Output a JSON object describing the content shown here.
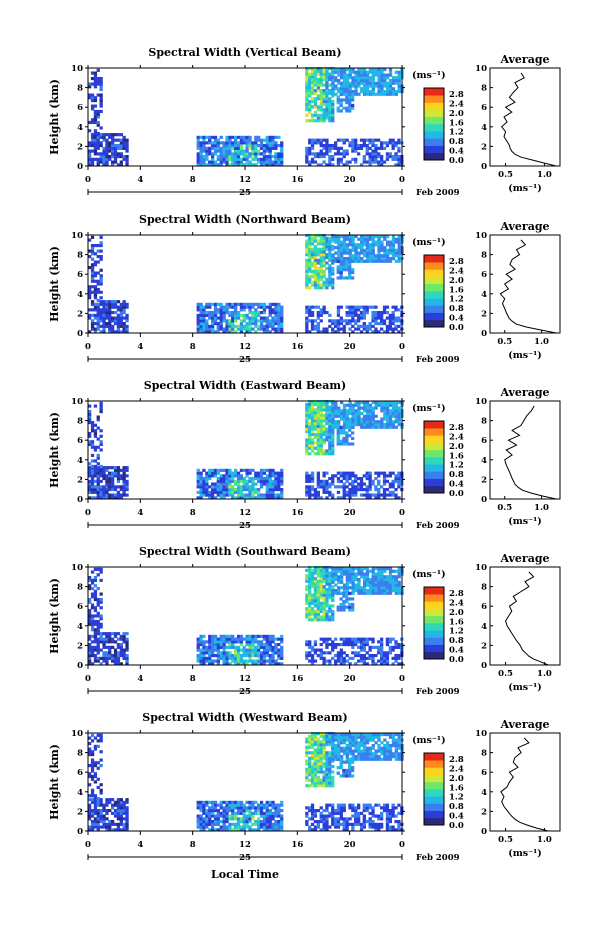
{
  "figure": {
    "xlabel": "Local Time",
    "date_day": "25",
    "date_suffix": "Feb 2009",
    "ylabel": "Height (km)",
    "colorbar_unit": "(ms⁻¹)",
    "colorbar_ticks": [
      "2.8",
      "2.4",
      "2.0",
      "1.6",
      "1.2",
      "0.8",
      "0.4",
      "0.0"
    ],
    "colors": [
      "#2a2a7a",
      "#2c3ed8",
      "#3a7ef0",
      "#22b8e6",
      "#2ed8b8",
      "#6ee86a",
      "#cfe838",
      "#ffd21e",
      "#ff8a1e",
      "#e62a1a"
    ],
    "avg_title": "Average",
    "avg_xlabel": "(ms⁻¹)"
  },
  "chart_data": [
    {
      "type": "heatmap",
      "title": "Spectral Width (Vertical Beam)",
      "x_ticks": [
        "0",
        "4",
        "8",
        "12",
        "16",
        "20",
        "0"
      ],
      "y_ticks": [
        "10",
        "8",
        "6",
        "4",
        "2",
        "0"
      ],
      "xlim": [
        0,
        24
      ],
      "ylim": [
        0,
        10
      ],
      "zlim": [
        0,
        3.0
      ],
      "avg": {
        "x_ticks": [
          "0.5",
          "1.0"
        ],
        "xlim": [
          0.3,
          1.2
        ],
        "y_ticks": [
          "10",
          "8",
          "6",
          "4",
          "2",
          "0"
        ],
        "height": [
          0,
          0.3,
          0.6,
          0.9,
          1.2,
          1.5,
          1.8,
          2.1,
          2.5,
          3.0,
          3.5,
          4.0,
          4.5,
          5.0,
          5.5,
          6.0,
          6.5,
          7.0,
          7.5,
          8.0,
          8.5,
          9.0,
          9.5
        ],
        "width": [
          1.15,
          1.0,
          0.85,
          0.7,
          0.62,
          0.58,
          0.56,
          0.55,
          0.52,
          0.48,
          0.5,
          0.45,
          0.52,
          0.48,
          0.58,
          0.5,
          0.62,
          0.55,
          0.6,
          0.66,
          0.62,
          0.74,
          0.7
        ]
      }
    },
    {
      "type": "heatmap",
      "title": "Spectral Width (Northward Beam)",
      "x_ticks": [
        "0",
        "4",
        "8",
        "12",
        "16",
        "20",
        "0"
      ],
      "y_ticks": [
        "10",
        "8",
        "6",
        "4",
        "2",
        "0"
      ],
      "xlim": [
        0,
        24
      ],
      "ylim": [
        0,
        10
      ],
      "zlim": [
        0,
        3.0
      ],
      "avg": {
        "x_ticks": [
          "0.5",
          "1.0"
        ],
        "xlim": [
          0.3,
          1.25
        ],
        "y_ticks": [
          "10",
          "8",
          "6",
          "4",
          "2",
          "0"
        ],
        "height": [
          0,
          0.3,
          0.6,
          0.9,
          1.2,
          1.5,
          1.8,
          2.1,
          2.5,
          3.0,
          3.5,
          4.0,
          4.5,
          5.0,
          5.5,
          6.0,
          6.5,
          7.0,
          7.5,
          8.0,
          8.5,
          9.0,
          9.5
        ],
        "width": [
          1.2,
          1.0,
          0.8,
          0.66,
          0.6,
          0.56,
          0.54,
          0.52,
          0.5,
          0.47,
          0.5,
          0.44,
          0.55,
          0.5,
          0.6,
          0.52,
          0.64,
          0.57,
          0.6,
          0.7,
          0.66,
          0.78,
          0.72
        ]
      }
    },
    {
      "type": "heatmap",
      "title": "Spectral Width (Eastward Beam)",
      "x_ticks": [
        "0",
        "4",
        "8",
        "12",
        "16",
        "20",
        "0"
      ],
      "y_ticks": [
        "10",
        "8",
        "6",
        "4",
        "2",
        "0"
      ],
      "xlim": [
        0,
        24
      ],
      "ylim": [
        0,
        10
      ],
      "zlim": [
        0,
        3.0
      ],
      "avg": {
        "x_ticks": [
          "0.5",
          "1.0"
        ],
        "xlim": [
          0.3,
          1.25
        ],
        "y_ticks": [
          "10",
          "8",
          "6",
          "4",
          "2",
          "0"
        ],
        "height": [
          0,
          0.3,
          0.6,
          0.9,
          1.2,
          1.5,
          1.8,
          2.1,
          2.5,
          3.0,
          3.5,
          4.0,
          4.5,
          5.0,
          5.5,
          6.0,
          6.5,
          7.0,
          7.5,
          8.0,
          8.5,
          9.0,
          9.5
        ],
        "width": [
          1.2,
          1.02,
          0.86,
          0.74,
          0.68,
          0.64,
          0.62,
          0.6,
          0.58,
          0.55,
          0.52,
          0.5,
          0.6,
          0.52,
          0.66,
          0.55,
          0.7,
          0.6,
          0.72,
          0.76,
          0.8,
          0.86,
          0.9
        ]
      }
    },
    {
      "type": "heatmap",
      "title": "Spectral Width (Southward Beam)",
      "x_ticks": [
        "0",
        "4",
        "8",
        "12",
        "16",
        "20",
        "0"
      ],
      "y_ticks": [
        "10",
        "8",
        "6",
        "4",
        "2",
        "0"
      ],
      "xlim": [
        0,
        24
      ],
      "ylim": [
        0,
        10
      ],
      "zlim": [
        0,
        3.0
      ],
      "avg": {
        "x_ticks": [
          "0.5",
          "1.0"
        ],
        "xlim": [
          0.3,
          1.2
        ],
        "y_ticks": [
          "10",
          "8",
          "6",
          "4",
          "2",
          "0"
        ],
        "height": [
          0,
          0.3,
          0.6,
          0.9,
          1.2,
          1.5,
          1.8,
          2.1,
          2.5,
          3.0,
          3.5,
          4.0,
          4.5,
          5.0,
          5.5,
          6.0,
          6.5,
          7.0,
          7.5,
          8.0,
          8.5,
          9.0,
          9.5
        ],
        "width": [
          1.05,
          0.96,
          0.86,
          0.8,
          0.76,
          0.72,
          0.7,
          0.68,
          0.64,
          0.6,
          0.56,
          0.52,
          0.5,
          0.54,
          0.58,
          0.55,
          0.64,
          0.6,
          0.7,
          0.8,
          0.75,
          0.86,
          0.8
        ]
      }
    },
    {
      "type": "heatmap",
      "title": "Spectral Width (Westward Beam)",
      "x_ticks": [
        "0",
        "4",
        "8",
        "12",
        "16",
        "20",
        "0"
      ],
      "y_ticks": [
        "10",
        "8",
        "6",
        "4",
        "2",
        "0"
      ],
      "xlim": [
        0,
        24
      ],
      "ylim": [
        0,
        10
      ],
      "zlim": [
        0,
        3.0
      ],
      "avg": {
        "x_ticks": [
          "0.5",
          "1.0"
        ],
        "xlim": [
          0.3,
          1.2
        ],
        "y_ticks": [
          "10",
          "8",
          "6",
          "4",
          "2",
          "0"
        ],
        "height": [
          0,
          0.3,
          0.6,
          0.9,
          1.2,
          1.5,
          1.8,
          2.1,
          2.5,
          3.0,
          3.5,
          4.0,
          4.5,
          5.0,
          5.5,
          6.0,
          6.5,
          7.0,
          7.5,
          8.0,
          8.5,
          9.0,
          9.5
        ],
        "width": [
          1.05,
          0.9,
          0.78,
          0.68,
          0.62,
          0.58,
          0.55,
          0.52,
          0.48,
          0.45,
          0.48,
          0.44,
          0.52,
          0.55,
          0.6,
          0.55,
          0.66,
          0.6,
          0.62,
          0.7,
          0.66,
          0.8,
          0.74
        ]
      }
    }
  ]
}
